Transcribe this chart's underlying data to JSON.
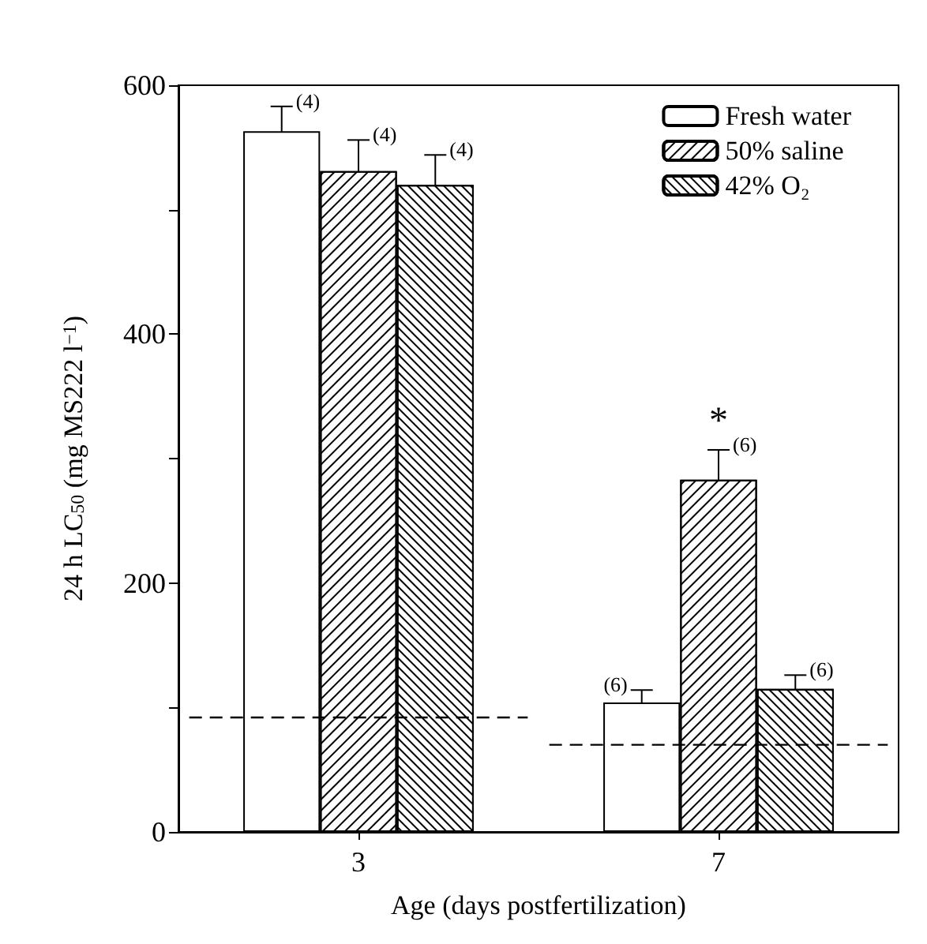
{
  "chart_data": {
    "type": "bar",
    "xlabel": "Age (days postfertilization)",
    "ylabel": "24 h LC$_{50}$ (mg MS222 l$^{−1}$)",
    "categories": [
      "3",
      "7"
    ],
    "series": [
      {
        "name": "Fresh water",
        "color": "#ffffff",
        "values": [
          563,
          104
        ],
        "errors": [
          20,
          10
        ]
      },
      {
        "name": "50% saline",
        "color": "#ffffff",
        "values": [
          531,
          283
        ],
        "errors": [
          25,
          24
        ]
      },
      {
        "name": "42% O₂",
        "color": "#ffffff",
        "values": [
          520,
          115
        ],
        "errors": [
          24,
          11
        ]
      }
    ],
    "ylim": [
      0,
      600
    ],
    "yticks": [
      0,
      {
        "value": 100,
        "label": null
      },
      200,
      {
        "value": 300,
        "label": null
      },
      400,
      {
        "value": 500,
        "label": null
      },
      600
    ],
    "ref_lines": [
      {
        "axis": "y",
        "value": 92,
        "line_style": "dashed",
        "color": "#000000"
      },
      {
        "axis": "y",
        "value": 70,
        "line_style": "dashed",
        "color": "#000000"
      }
    ],
    "annotations": [
      "(4)",
      "(4)",
      "(4)",
      "(6)",
      "(6)",
      "(6)",
      "*"
    ],
    "legend": "top right",
    "grid": false
  }
}
